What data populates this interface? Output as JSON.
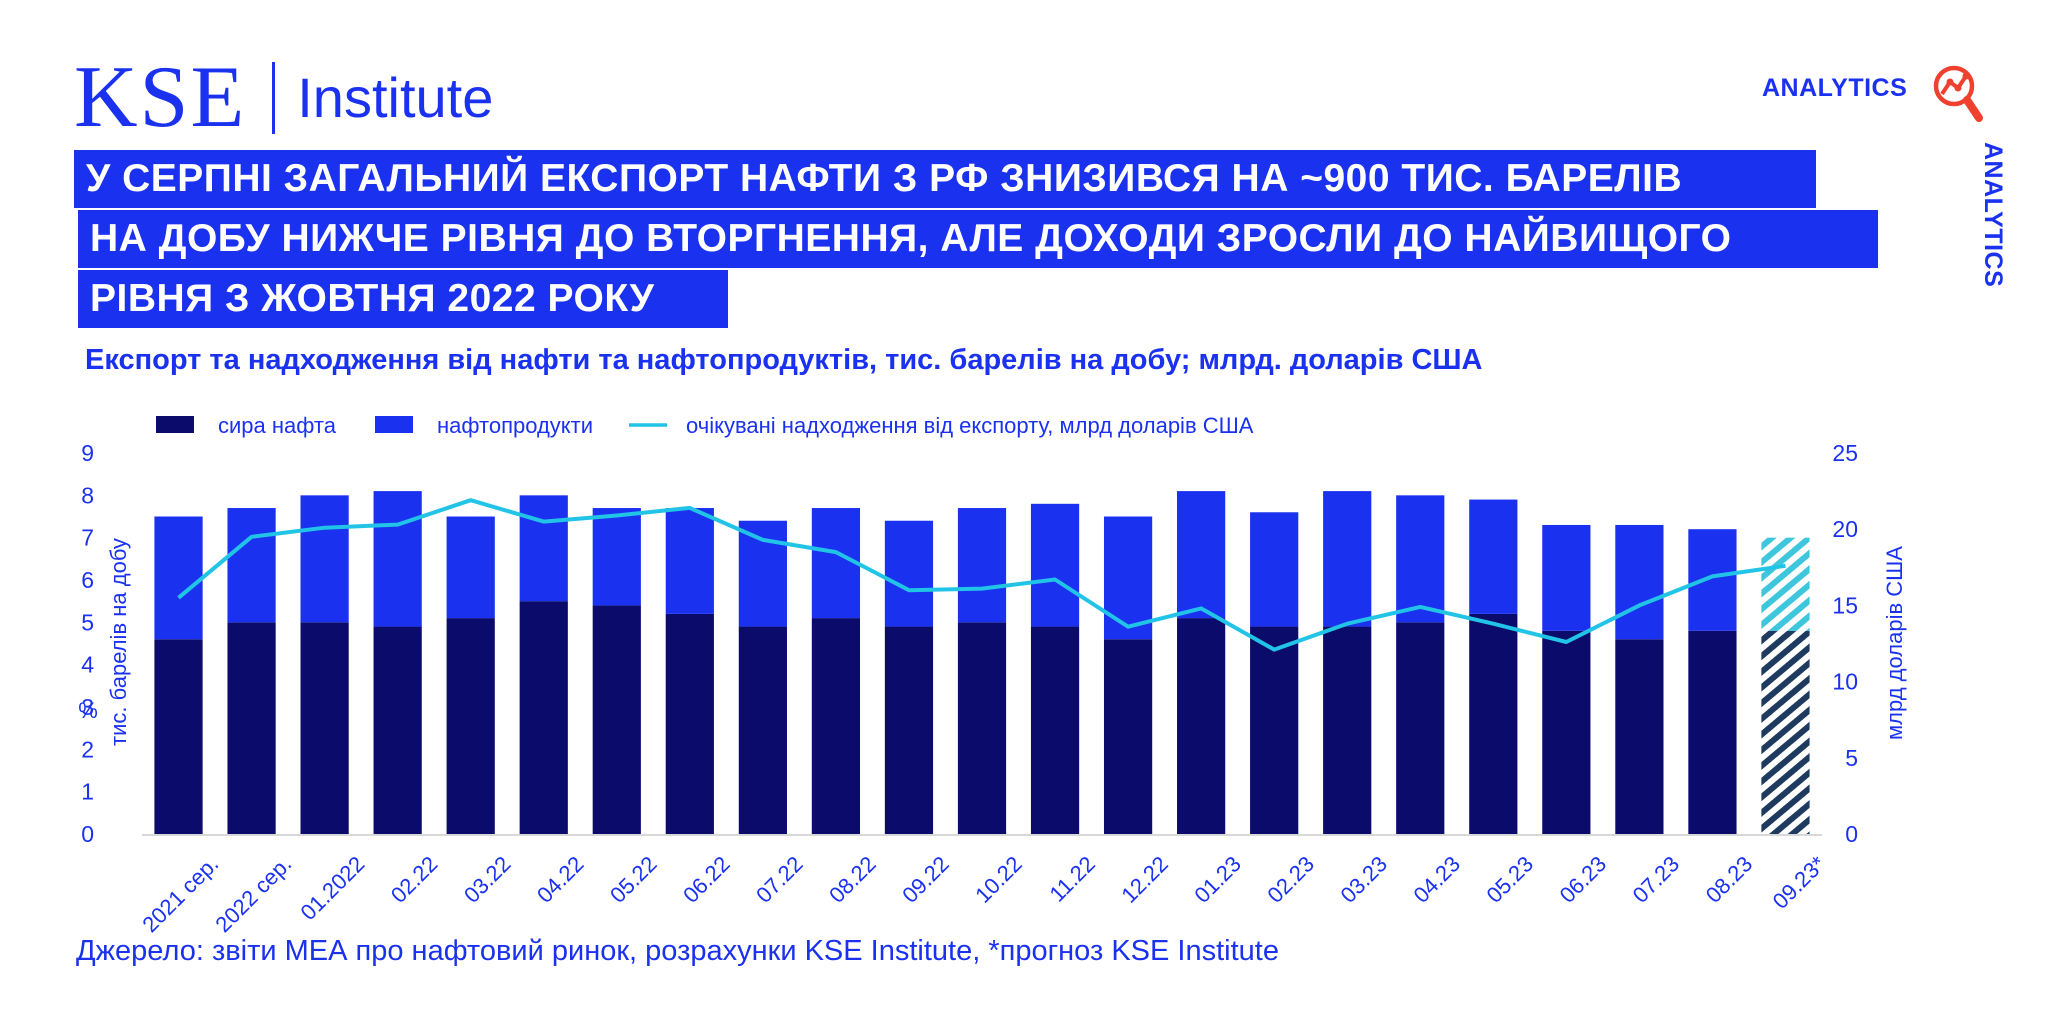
{
  "header": {
    "logo_main": "KSE",
    "logo_sub": "Institute",
    "analytics_label": "ANALYTICS",
    "analytics_vertical": "ANALYTICS",
    "title_lines": [
      "У СЕРПНІ ЗАГАЛЬНИЙ ЕКСПОРТ НАФТИ З РФ ЗНИЗИВСЯ НА ~900 ТИС. БАРЕЛІВ",
      "НА ДОБУ НИЖЧЕ РІВНЯ ДО ВТОРГНЕННЯ, АЛЕ ДОХОДИ ЗРОСЛИ ДО НАЙВИЩОГО",
      "РІВНЯ З ЖОВТНЯ 2022 РОКУ"
    ],
    "subtitle": "Експорт та надходження від нафти та нафтопродуктів, тис. барелів на добу; млрд. доларів США"
  },
  "footer": {
    "source": "Джерело: звіти МЕА про нафтовий ринок, розрахунки KSE Institute, *прогноз KSE Institute"
  },
  "colors": {
    "brand": "#1a31f0",
    "crude": "#0b0b6b",
    "products": "#1a31f0",
    "revenue_line": "#21c4e6",
    "forecast_lower": "#1e3a5f",
    "forecast_upper": "#3ec6dc",
    "analytics_icon": "#f0412f"
  },
  "chart_data": {
    "type": "bar",
    "stacked": true,
    "categories": [
      "2021 сер.",
      "2022 сер.",
      "01.2022",
      "02.22",
      "03.22",
      "04.22",
      "05.22",
      "06.22",
      "07.22",
      "08.22",
      "09.22",
      "10.22",
      "11.22",
      "12.22",
      "01.23",
      "02.23",
      "03.23",
      "04.23",
      "05.23",
      "06.23",
      "07.23",
      "08.23",
      "09.23*"
    ],
    "series": [
      {
        "name": "сира нафта",
        "axis": "left",
        "values": [
          4.6,
          5.0,
          5.0,
          4.9,
          5.1,
          5.5,
          5.4,
          5.2,
          4.9,
          5.1,
          4.9,
          5.0,
          4.9,
          4.6,
          5.1,
          4.9,
          4.9,
          5.0,
          5.2,
          4.8,
          4.6,
          4.8,
          4.8
        ]
      },
      {
        "name": "нафтопродукти",
        "axis": "left",
        "values": [
          2.9,
          2.7,
          3.0,
          3.2,
          2.4,
          2.5,
          2.3,
          2.5,
          2.5,
          2.6,
          2.5,
          2.7,
          2.9,
          2.9,
          3.0,
          2.7,
          3.2,
          3.0,
          2.7,
          2.5,
          2.7,
          2.4,
          2.2
        ]
      },
      {
        "name": "очікувані надходження від експорту, млрд доларів США",
        "axis": "right",
        "type": "line",
        "values": [
          15.5,
          19.5,
          20.1,
          20.3,
          21.9,
          20.5,
          20.9,
          21.4,
          19.3,
          18.5,
          16.0,
          16.1,
          16.7,
          13.6,
          14.8,
          12.1,
          13.8,
          14.9,
          13.8,
          12.6,
          15.0,
          16.9,
          17.6
        ]
      }
    ],
    "forecast_categories": [
      "09.23*"
    ],
    "ylabel": "тис. барелів на добу",
    "ylabel_extra": "%",
    "y2label": "млрд доларів США",
    "ylim": [
      0,
      9
    ],
    "y2lim": [
      0,
      25
    ],
    "yticks": [
      "0",
      "1",
      "2",
      "3",
      "4",
      "5",
      "6",
      "7",
      "8",
      "9"
    ],
    "y2ticks": [
      "0",
      "5",
      "10",
      "15",
      "20",
      "25"
    ],
    "legend_position": "top-left",
    "grid": false
  }
}
